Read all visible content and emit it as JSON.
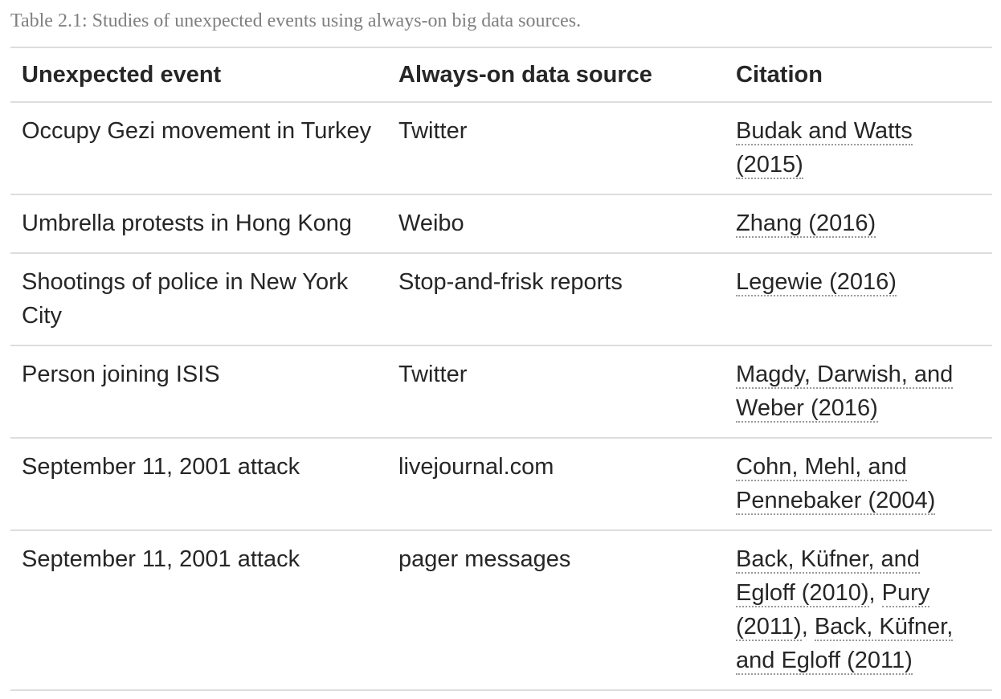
{
  "caption": "Table 2.1: Studies of unexpected events using always-on big data sources.",
  "table": {
    "headers": [
      "Unexpected event",
      "Always-on data source",
      "Citation"
    ],
    "rows": [
      {
        "event": "Occupy Gezi movement in Turkey",
        "source": "Twitter",
        "citations": [
          "Budak and Watts (2015)"
        ]
      },
      {
        "event": "Umbrella protests in Hong Kong",
        "source": "Weibo",
        "citations": [
          "Zhang (2016)"
        ]
      },
      {
        "event": "Shootings of police in New York City",
        "source": "Stop-and-frisk reports",
        "citations": [
          "Legewie (2016)"
        ]
      },
      {
        "event": "Person joining ISIS",
        "source": "Twitter",
        "citations": [
          "Magdy, Darwish, and Weber (2016)"
        ]
      },
      {
        "event": "September 11, 2001 attack",
        "source": "livejournal.com",
        "citations": [
          "Cohn, Mehl, and Pennebaker (2004)"
        ]
      },
      {
        "event": "September 11, 2001 attack",
        "source": "pager messages",
        "citations": [
          "Back, Küfner, and Egloff (2010)",
          "Pury (2011)",
          "Back, Küfner, and Egloff (2011)"
        ]
      }
    ],
    "citation_separator": ", "
  }
}
